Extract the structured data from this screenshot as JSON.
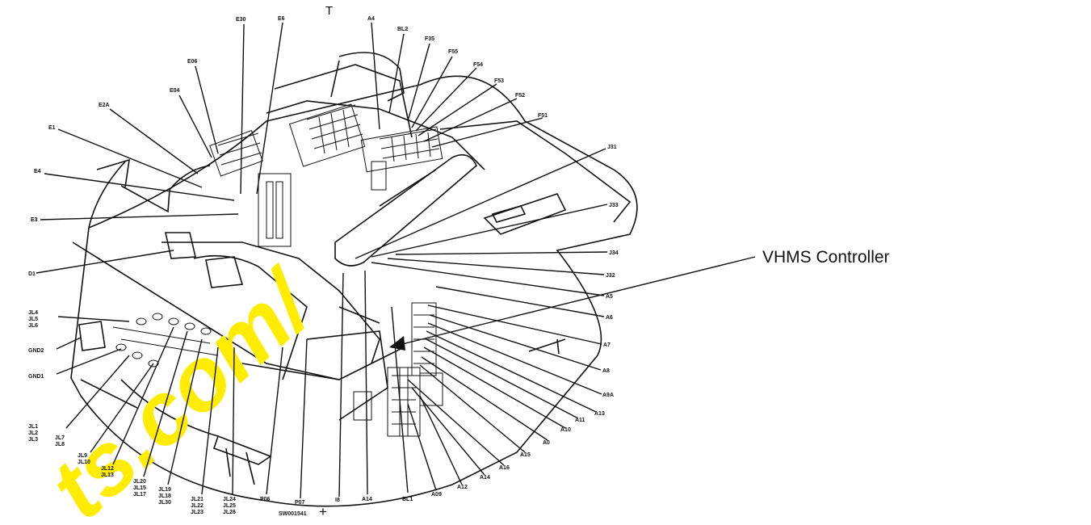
{
  "callout": {
    "text": "VHMS Controller"
  },
  "diagram_code": "SW001541",
  "watermark": {
    "text": "ts.com/",
    "color": "#ffec00"
  },
  "top_marker": "T",
  "bottom_marker": "+",
  "labels": {
    "E6": "E6",
    "E30": "E30",
    "A4": "A4",
    "BL2": "BL2",
    "F35": "F35",
    "F55": "F55",
    "F54": "F54",
    "F53": "F53",
    "F52": "F52",
    "F51": "F51",
    "E06": "E06",
    "E04": "E04",
    "E2A": "E2A",
    "E1": "E1",
    "E4": "E4",
    "E3": "E3",
    "J31": "J31",
    "J33": "J33",
    "J34": "J34",
    "J32": "J32",
    "A5": "A5",
    "A6": "A6",
    "A7": "A7",
    "A8": "A8",
    "A9A": "A9A",
    "A13": "A13",
    "A11": "A11",
    "A10": "A10",
    "A0": "A0",
    "A15": "A15",
    "A16": "A16",
    "A14b": "A14",
    "A12": "A12",
    "A09": "A09",
    "BL1": "BL1",
    "A14": "A14",
    "D1": "D1",
    "JL4": "JL4",
    "JL5": "JL5",
    "JL6": "JL6",
    "GND2": "GND2",
    "GND1": "GND1",
    "JL1": "JL1",
    "JL2": "JL2",
    "JL3": "JL3",
    "JL7": "JL7",
    "JL8": "JL8",
    "JL9": "JL9",
    "JL10": "JL10",
    "JL12": "JL12",
    "JL13": "JL13",
    "JL20": "JL20",
    "JL15": "JL15",
    "JL17": "JL17",
    "JL19": "JL19",
    "JL18": "JL18",
    "JL30": "JL30",
    "JL21": "JL21",
    "JL22": "JL22",
    "JL23": "JL23",
    "JL24": "JL24",
    "JL25": "JL25",
    "JL26": "JL26",
    "P06": "P06",
    "P07": "P07",
    "I8": "I8"
  }
}
